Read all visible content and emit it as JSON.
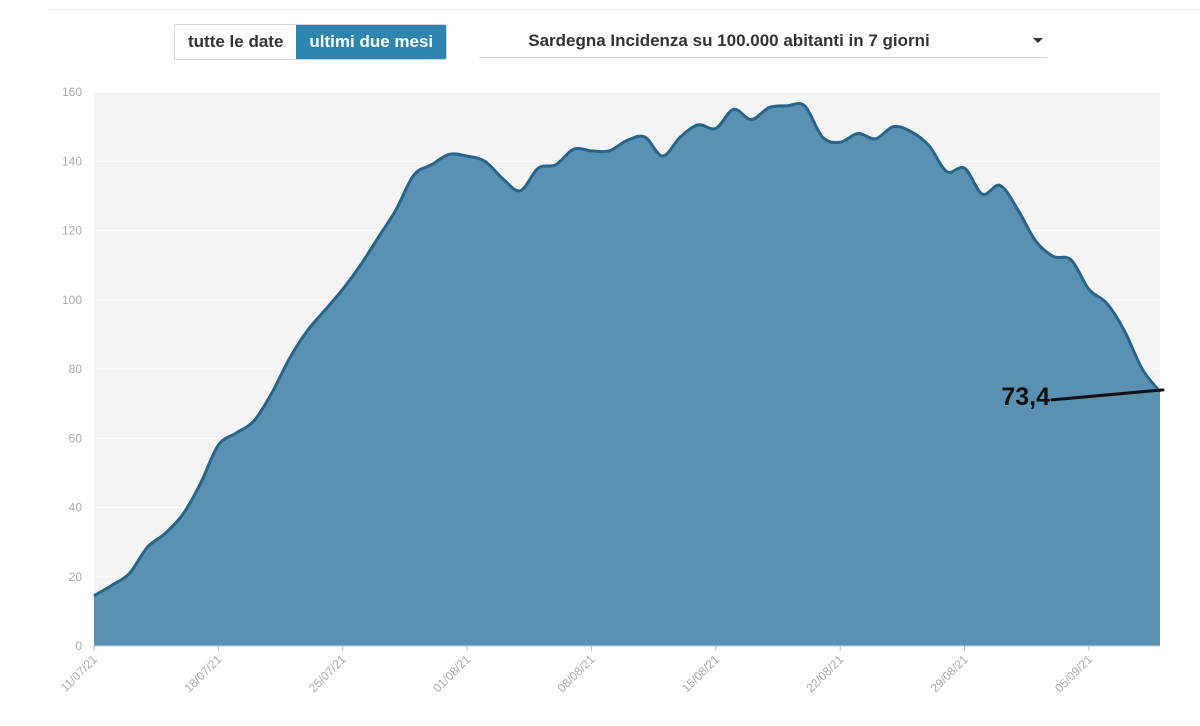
{
  "controls": {
    "range_buttons": [
      {
        "label": "tutte le date",
        "active": false
      },
      {
        "label": "ultimi due mesi",
        "active": true
      }
    ],
    "dataset_select": {
      "value": "Sardegna Incidenza su 100.000 abitanti in 7 giorni"
    }
  },
  "colors": {
    "accent": "#2e85b0",
    "area_fill": "#5a91b3",
    "area_line": "#27648c",
    "plot_background": "#f4f4f4"
  },
  "chart_data": {
    "type": "area",
    "title": "Sardegna Incidenza su 100.000 abitanti in 7 giorni",
    "xlabel": "",
    "ylabel": "",
    "ylim": [
      0,
      160
    ],
    "yticks": [
      0,
      20,
      40,
      60,
      80,
      100,
      120,
      140,
      160
    ],
    "grid": true,
    "xticks": [
      "11/07/21",
      "18/07/21",
      "25/07/21",
      "01/08/21",
      "08/08/21",
      "15/08/21",
      "22/08/21",
      "29/08/21",
      "05/09/21"
    ],
    "x": [
      "11/07/21",
      "12/07/21",
      "13/07/21",
      "14/07/21",
      "15/07/21",
      "16/07/21",
      "17/07/21",
      "18/07/21",
      "19/07/21",
      "20/07/21",
      "21/07/21",
      "22/07/21",
      "23/07/21",
      "24/07/21",
      "25/07/21",
      "26/07/21",
      "27/07/21",
      "28/07/21",
      "29/07/21",
      "30/07/21",
      "31/07/21",
      "01/08/21",
      "02/08/21",
      "03/08/21",
      "04/08/21",
      "05/08/21",
      "06/08/21",
      "07/08/21",
      "08/08/21",
      "09/08/21",
      "10/08/21",
      "11/08/21",
      "12/08/21",
      "13/08/21",
      "14/08/21",
      "15/08/21",
      "16/08/21",
      "17/08/21",
      "18/08/21",
      "19/08/21",
      "20/08/21",
      "21/08/21",
      "22/08/21",
      "23/08/21",
      "24/08/21",
      "25/08/21",
      "26/08/21",
      "27/08/21",
      "28/08/21",
      "29/08/21",
      "30/08/21",
      "31/08/21",
      "01/09/21",
      "02/09/21",
      "03/09/21",
      "04/09/21",
      "05/09/21",
      "06/09/21",
      "07/09/21",
      "08/09/21",
      "09/09/21"
    ],
    "series": [
      {
        "values": [
          14.5,
          17.5,
          21,
          28.5,
          32.5,
          38,
          47,
          58,
          61.5,
          65,
          73,
          83,
          91,
          97,
          103,
          110,
          118,
          126,
          136,
          139,
          142,
          141.5,
          140,
          135,
          131.5,
          138,
          139,
          143.5,
          143,
          143,
          146,
          147,
          141.5,
          147,
          150.5,
          149.5,
          155,
          152,
          155.5,
          156,
          156,
          147,
          145.5,
          148,
          146.5,
          150,
          148.5,
          144.5,
          137,
          138,
          130.5,
          133,
          126,
          117,
          112.5,
          111.5,
          103,
          99,
          91,
          80,
          73.4
        ]
      }
    ],
    "annotations": [
      {
        "text": "73,4",
        "x": "09/09/21",
        "y": 73.4
      }
    ]
  }
}
